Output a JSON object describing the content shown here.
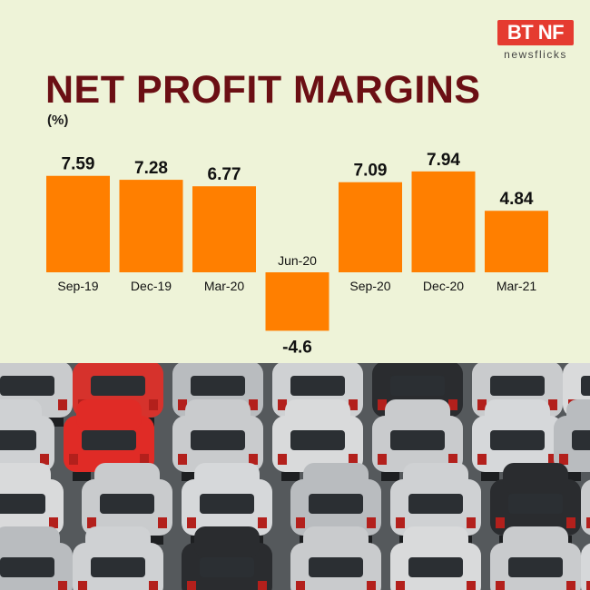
{
  "header": {
    "title": "NET PROFIT MARGINS",
    "unit": "(%)"
  },
  "logo": {
    "main": "BT NF",
    "sub": "newsflicks"
  },
  "colors": {
    "background": "#eef3d8",
    "bar": "#ff7f00",
    "title": "#6b0f14",
    "logo": "#e53b30"
  },
  "chart_data": {
    "type": "bar",
    "title": "NET PROFIT MARGINS",
    "ylabel": "(%)",
    "categories": [
      "Sep-19",
      "Dec-19",
      "Mar-20",
      "Jun-20",
      "Sep-20",
      "Dec-20",
      "Mar-21"
    ],
    "values": [
      7.59,
      7.28,
      6.77,
      -4.6,
      7.09,
      7.94,
      4.84
    ],
    "value_labels": [
      "7.59",
      "7.28",
      "6.77",
      "-4.6",
      "7.09",
      "7.94",
      "4.84"
    ],
    "ylim": [
      -4.6,
      7.94
    ],
    "grid": false,
    "legend": "none"
  },
  "photo": {
    "subject": "rows of parked hatchback cars"
  }
}
